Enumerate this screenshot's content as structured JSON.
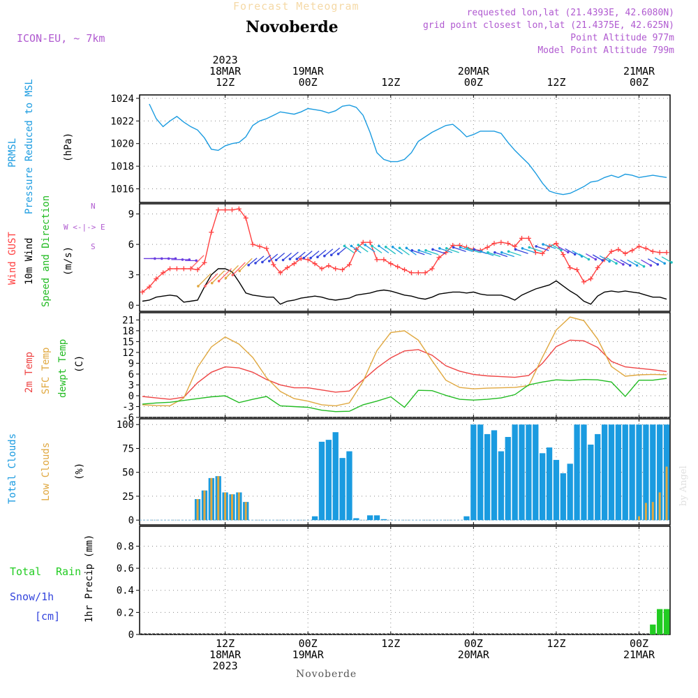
{
  "header": {
    "title": "Forecast Meteogram",
    "station": "Novoberde",
    "model": "ICON-EU, ~ 7km",
    "requested": "requested lon,lat (21.4393E, 42.6080N)",
    "gridpoint": "grid point closest lon,lat (21.4375E, 42.625N)",
    "point_alt": "Point Altitude 977m",
    "model_alt": "Model Point Altitude 799m",
    "byline": "by Angel",
    "footer_station": "Novoberde"
  },
  "time_axis": {
    "top_ticks": [
      {
        "l1": "2023",
        "l2": "18MAR",
        "l3": "12Z",
        "h": 12
      },
      {
        "l1": "",
        "l2": "19MAR",
        "l3": "00Z",
        "h": 24
      },
      {
        "l1": "",
        "l2": "",
        "l3": "12Z",
        "h": 36
      },
      {
        "l1": "",
        "l2": "20MAR",
        "l3": "00Z",
        "h": 48
      },
      {
        "l1": "",
        "l2": "",
        "l3": "12Z",
        "h": 60
      },
      {
        "l1": "",
        "l2": "21MAR",
        "l3": "00Z",
        "h": 72
      }
    ],
    "bottom_ticks": [
      {
        "l1": "12Z",
        "l2": "18MAR",
        "l3": "2023",
        "h": 12
      },
      {
        "l1": "00Z",
        "l2": "19MAR",
        "l3": "",
        "h": 24
      },
      {
        "l1": "12Z",
        "l2": "",
        "l3": "",
        "h": 36
      },
      {
        "l1": "00Z",
        "l2": "20MAR",
        "l3": "",
        "h": 48
      },
      {
        "l1": "12Z",
        "l2": "",
        "l3": "",
        "h": 60
      },
      {
        "l1": "00Z",
        "l2": "21MAR",
        "l3": "",
        "h": 72
      }
    ]
  },
  "colors": {
    "pressure": "#1a9be0",
    "gust": "#ff4040",
    "wind": "#000000",
    "temp2m": "#ee4444",
    "sfctemp": "#e0a840",
    "dewpt": "#22bb22",
    "total_clouds": "#1a9be0",
    "low_clouds": "#e0a840",
    "rain": "#22cc22",
    "snow": "#3344dd",
    "legend_purple": "#b05ad0"
  },
  "panel_labels": {
    "pressure": {
      "l1": "PRMSL",
      "l2": "Pressure Reduced to MSL",
      "unit": "(hPa)"
    },
    "wind": {
      "l1": "Wind GUST",
      "l2": "10m Wind",
      "l3": "Speed and Direction",
      "unit": "(m/s)",
      "compass_n": "N",
      "compass_s": "S",
      "compass_we": "W <-|-> E"
    },
    "temp": {
      "l1": "2m Temp",
      "l2": "SFC Temp",
      "l3": "dewpt Temp",
      "unit": "(C)"
    },
    "clouds": {
      "l1": "Total Clouds",
      "l2": "Low Clouds",
      "unit": "(%)"
    },
    "precip": {
      "l1": "Total",
      "l1b": "Rain",
      "l2": "Snow/1h",
      "l3": "[cm]",
      "unit": "1hr Precip (mm)"
    }
  },
  "chart_data": [
    {
      "type": "line",
      "name": "pressure",
      "ylim": [
        1014.8,
        1024.3
      ],
      "yticks": [
        1016,
        1018,
        1020,
        1022,
        1024
      ],
      "x_hours": [
        1,
        2,
        3,
        4,
        5,
        6,
        7,
        8,
        9,
        10,
        11,
        12,
        13,
        14,
        15,
        16,
        17,
        18,
        19,
        20,
        21,
        22,
        23,
        24,
        25,
        26,
        27,
        28,
        29,
        30,
        31,
        32,
        33,
        34,
        35,
        36,
        37,
        38,
        39,
        40,
        41,
        42,
        43,
        44,
        45,
        46,
        47,
        48,
        49,
        50,
        51,
        52,
        53,
        54,
        55,
        56,
        57,
        58,
        59,
        60,
        61,
        62,
        63,
        64,
        65,
        66,
        67,
        68,
        69,
        70,
        71,
        72,
        73,
        74,
        75,
        76
      ],
      "series": [
        {
          "values": [
            1023.5,
            1022.2,
            1021.5,
            1022.0,
            1022.4,
            1021.9,
            1021.5,
            1021.2,
            1020.5,
            1019.5,
            1019.4,
            1019.8,
            1020.0,
            1020.1,
            1020.6,
            1021.6,
            1022.0,
            1022.2,
            1022.5,
            1022.8,
            1022.7,
            1022.6,
            1022.8,
            1023.1,
            1023.0,
            1022.9,
            1022.7,
            1022.9,
            1023.3,
            1023.4,
            1023.2,
            1022.5,
            1021.0,
            1019.2,
            1018.6,
            1018.4,
            1018.4,
            1018.6,
            1019.2,
            1020.2,
            1020.6,
            1021.0,
            1021.3,
            1021.6,
            1021.7,
            1021.2,
            1020.6,
            1020.8,
            1021.1,
            1021.1,
            1021.1,
            1020.9,
            1020.1,
            1019.4,
            1018.8,
            1018.2,
            1017.4,
            1016.5,
            1015.8,
            1015.6,
            1015.5,
            1015.6,
            1015.9,
            1016.2,
            1016.6,
            1016.7,
            1017.0,
            1017.2,
            1017.0,
            1017.3,
            1017.2,
            1017.0,
            1017.1,
            1017.2,
            1017.1,
            1017.0
          ]
        }
      ]
    },
    {
      "type": "line",
      "name": "wind",
      "ylim": [
        -0.6,
        10.0
      ],
      "yticks": [
        0,
        3,
        6,
        9
      ],
      "x_hours": [
        0,
        1,
        2,
        3,
        4,
        5,
        6,
        7,
        8,
        9,
        10,
        11,
        12,
        13,
        14,
        15,
        16,
        17,
        18,
        19,
        20,
        21,
        22,
        23,
        24,
        25,
        26,
        27,
        28,
        29,
        30,
        31,
        32,
        33,
        34,
        35,
        36,
        37,
        38,
        39,
        40,
        41,
        42,
        43,
        44,
        45,
        46,
        47,
        48,
        49,
        50,
        51,
        52,
        53,
        54,
        55,
        56,
        57,
        58,
        59,
        60,
        61,
        62,
        63,
        64,
        65,
        66,
        67,
        68,
        69,
        70,
        71,
        72,
        73,
        74,
        75,
        76
      ],
      "series": [
        {
          "values": [
            1.3,
            1.8,
            2.6,
            3.2,
            3.6,
            3.6,
            3.6,
            3.6,
            3.5,
            4.2,
            7.2,
            9.4,
            9.4,
            9.4,
            9.5,
            8.6,
            6.0,
            5.8,
            5.6,
            4.0,
            3.2,
            3.7,
            4.1,
            4.6,
            4.5,
            4.1,
            3.6,
            3.9,
            3.6,
            3.5,
            4.0,
            5.5,
            6.2,
            6.2,
            4.5,
            4.5,
            4.1,
            3.8,
            3.5,
            3.2,
            3.2,
            3.2,
            3.6,
            4.7,
            5.2,
            5.9,
            5.9,
            5.7,
            5.5,
            5.4,
            5.7,
            6.1,
            6.2,
            6.1,
            5.8,
            6.6,
            6.6,
            5.2,
            5.1,
            5.8,
            6.1,
            5.0,
            3.7,
            3.5,
            2.3,
            2.6,
            3.7,
            4.5,
            5.3,
            5.5,
            5.1,
            5.4,
            5.8,
            5.6,
            5.3,
            5.2,
            5.2
          ]
        },
        {
          "values": [
            0.4,
            0.5,
            0.8,
            0.9,
            1.0,
            0.9,
            0.3,
            0.4,
            0.5,
            1.8,
            3.0,
            3.6,
            3.6,
            3.3,
            2.3,
            1.2,
            1.0,
            0.9,
            0.8,
            0.8,
            0.1,
            0.4,
            0.5,
            0.7,
            0.8,
            0.9,
            0.8,
            0.6,
            0.5,
            0.6,
            0.7,
            1.0,
            1.1,
            1.2,
            1.4,
            1.5,
            1.4,
            1.2,
            1.0,
            0.9,
            0.7,
            0.6,
            0.8,
            1.1,
            1.2,
            1.3,
            1.3,
            1.2,
            1.3,
            1.1,
            1.0,
            1.0,
            1.0,
            0.8,
            0.5,
            1.0,
            1.3,
            1.6,
            1.8,
            2.0,
            2.4,
            1.9,
            1.4,
            1.0,
            0.4,
            0.1,
            0.9,
            1.3,
            1.4,
            1.3,
            1.4,
            1.3,
            1.2,
            1.0,
            0.8,
            0.8,
            0.6
          ]
        }
      ]
    },
    {
      "type": "line",
      "name": "temperature",
      "ylim": [
        -6,
        23
      ],
      "yticks": [
        -6,
        -3,
        0,
        3,
        6,
        9,
        12,
        15,
        18,
        21
      ],
      "x_hours": [
        0,
        2,
        4,
        6,
        8,
        10,
        12,
        14,
        16,
        18,
        20,
        22,
        24,
        26,
        28,
        30,
        32,
        34,
        36,
        38,
        40,
        42,
        44,
        46,
        48,
        50,
        52,
        54,
        56,
        58,
        60,
        62,
        64,
        66,
        68,
        70,
        72,
        74,
        76
      ],
      "series": [
        {
          "values": [
            -0.2,
            -0.6,
            -1.0,
            -0.4,
            3.6,
            6.5,
            8.0,
            7.7,
            6.5,
            4.5,
            3.0,
            2.2,
            2.2,
            1.6,
            1.0,
            1.3,
            4.4,
            7.7,
            10.5,
            12.4,
            12.8,
            11.2,
            8.3,
            6.8,
            5.9,
            5.5,
            5.3,
            5.1,
            5.6,
            9.0,
            13.6,
            15.4,
            15.2,
            13.4,
            9.5,
            8.0,
            7.6,
            7.2,
            6.7
          ]
        },
        {
          "values": [
            -2.5,
            -2.7,
            -2.8,
            -0.6,
            7.9,
            13.5,
            16.3,
            14.3,
            10.6,
            5.0,
            1.2,
            -0.8,
            -1.5,
            -2.5,
            -2.8,
            -2.0,
            4.0,
            12.5,
            17.5,
            18.0,
            15.4,
            9.7,
            4.3,
            2.3,
            1.9,
            2.1,
            2.2,
            2.3,
            2.8,
            10.7,
            18.2,
            21.8,
            20.8,
            15.7,
            8.1,
            5.4,
            5.8,
            5.9,
            5.8
          ]
        },
        {
          "values": [
            -2.3,
            -2.0,
            -1.8,
            -1.3,
            -0.8,
            -0.3,
            0.0,
            -1.9,
            -1.0,
            -0.2,
            -2.8,
            -3.0,
            -3.2,
            -4.0,
            -4.4,
            -4.3,
            -2.5,
            -1.5,
            -0.3,
            -3.2,
            1.5,
            1.4,
            0.1,
            -1.0,
            -1.2,
            -1.0,
            -0.6,
            0.3,
            3.0,
            3.8,
            4.4,
            4.2,
            4.5,
            4.4,
            3.8,
            -0.2,
            4.3,
            4.3,
            4.8
          ]
        }
      ]
    },
    {
      "type": "bar",
      "name": "clouds",
      "ylim": [
        -5,
        106
      ],
      "yticks": [
        0,
        25,
        50,
        75,
        100
      ],
      "x_hours": [
        8,
        9,
        10,
        11,
        12,
        13,
        14,
        15,
        25,
        26,
        27,
        28,
        29,
        30,
        31,
        33,
        34,
        35,
        47,
        48,
        49,
        50,
        51,
        52,
        53,
        54,
        55,
        56,
        57,
        58,
        59,
        60,
        61,
        62,
        63,
        64,
        65,
        66,
        67,
        68,
        69,
        70,
        71,
        72,
        73,
        74,
        75,
        76
      ],
      "series": [
        {
          "values": [
            22,
            31,
            44,
            46,
            29,
            27,
            29,
            19,
            4,
            82,
            84,
            92,
            65,
            72,
            2,
            5,
            5,
            1,
            4,
            100,
            100,
            90,
            94,
            72,
            87,
            100,
            100,
            100,
            100,
            70,
            76,
            63,
            49,
            59,
            100,
            100,
            79,
            90,
            100,
            100,
            100,
            100,
            100,
            100,
            100,
            100,
            100,
            100
          ]
        },
        {
          "values": [
            22,
            31,
            44,
            46,
            29,
            27,
            29,
            19,
            0,
            0,
            0,
            0,
            0,
            0,
            0,
            0,
            0,
            0,
            0,
            0,
            0,
            0,
            0,
            0,
            0,
            0,
            0,
            0,
            0,
            0,
            0,
            0,
            0,
            0,
            0,
            0,
            0,
            0,
            0,
            0,
            0,
            0,
            0,
            4,
            18,
            19,
            29,
            56
          ]
        }
      ]
    },
    {
      "type": "bar",
      "name": "precip",
      "ylim": [
        0,
        0.98
      ],
      "yticks": [
        0,
        0.2,
        0.4,
        0.6,
        0.8
      ],
      "x_hours": [
        74,
        75,
        76
      ],
      "series": [
        {
          "values": [
            0.09,
            0.23,
            0.23
          ]
        }
      ]
    }
  ]
}
